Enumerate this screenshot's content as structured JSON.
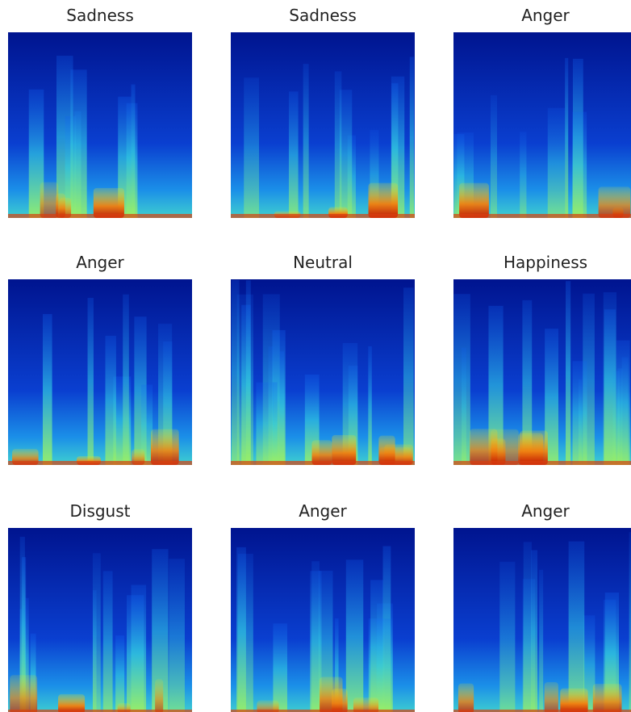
{
  "panels": [
    {
      "title": "Sadness"
    },
    {
      "title": "Sadness"
    },
    {
      "title": "Anger"
    },
    {
      "title": "Anger"
    },
    {
      "title": "Neutral"
    },
    {
      "title": "Happiness"
    },
    {
      "title": "Disgust"
    },
    {
      "title": "Anger"
    },
    {
      "title": "Anger"
    }
  ]
}
